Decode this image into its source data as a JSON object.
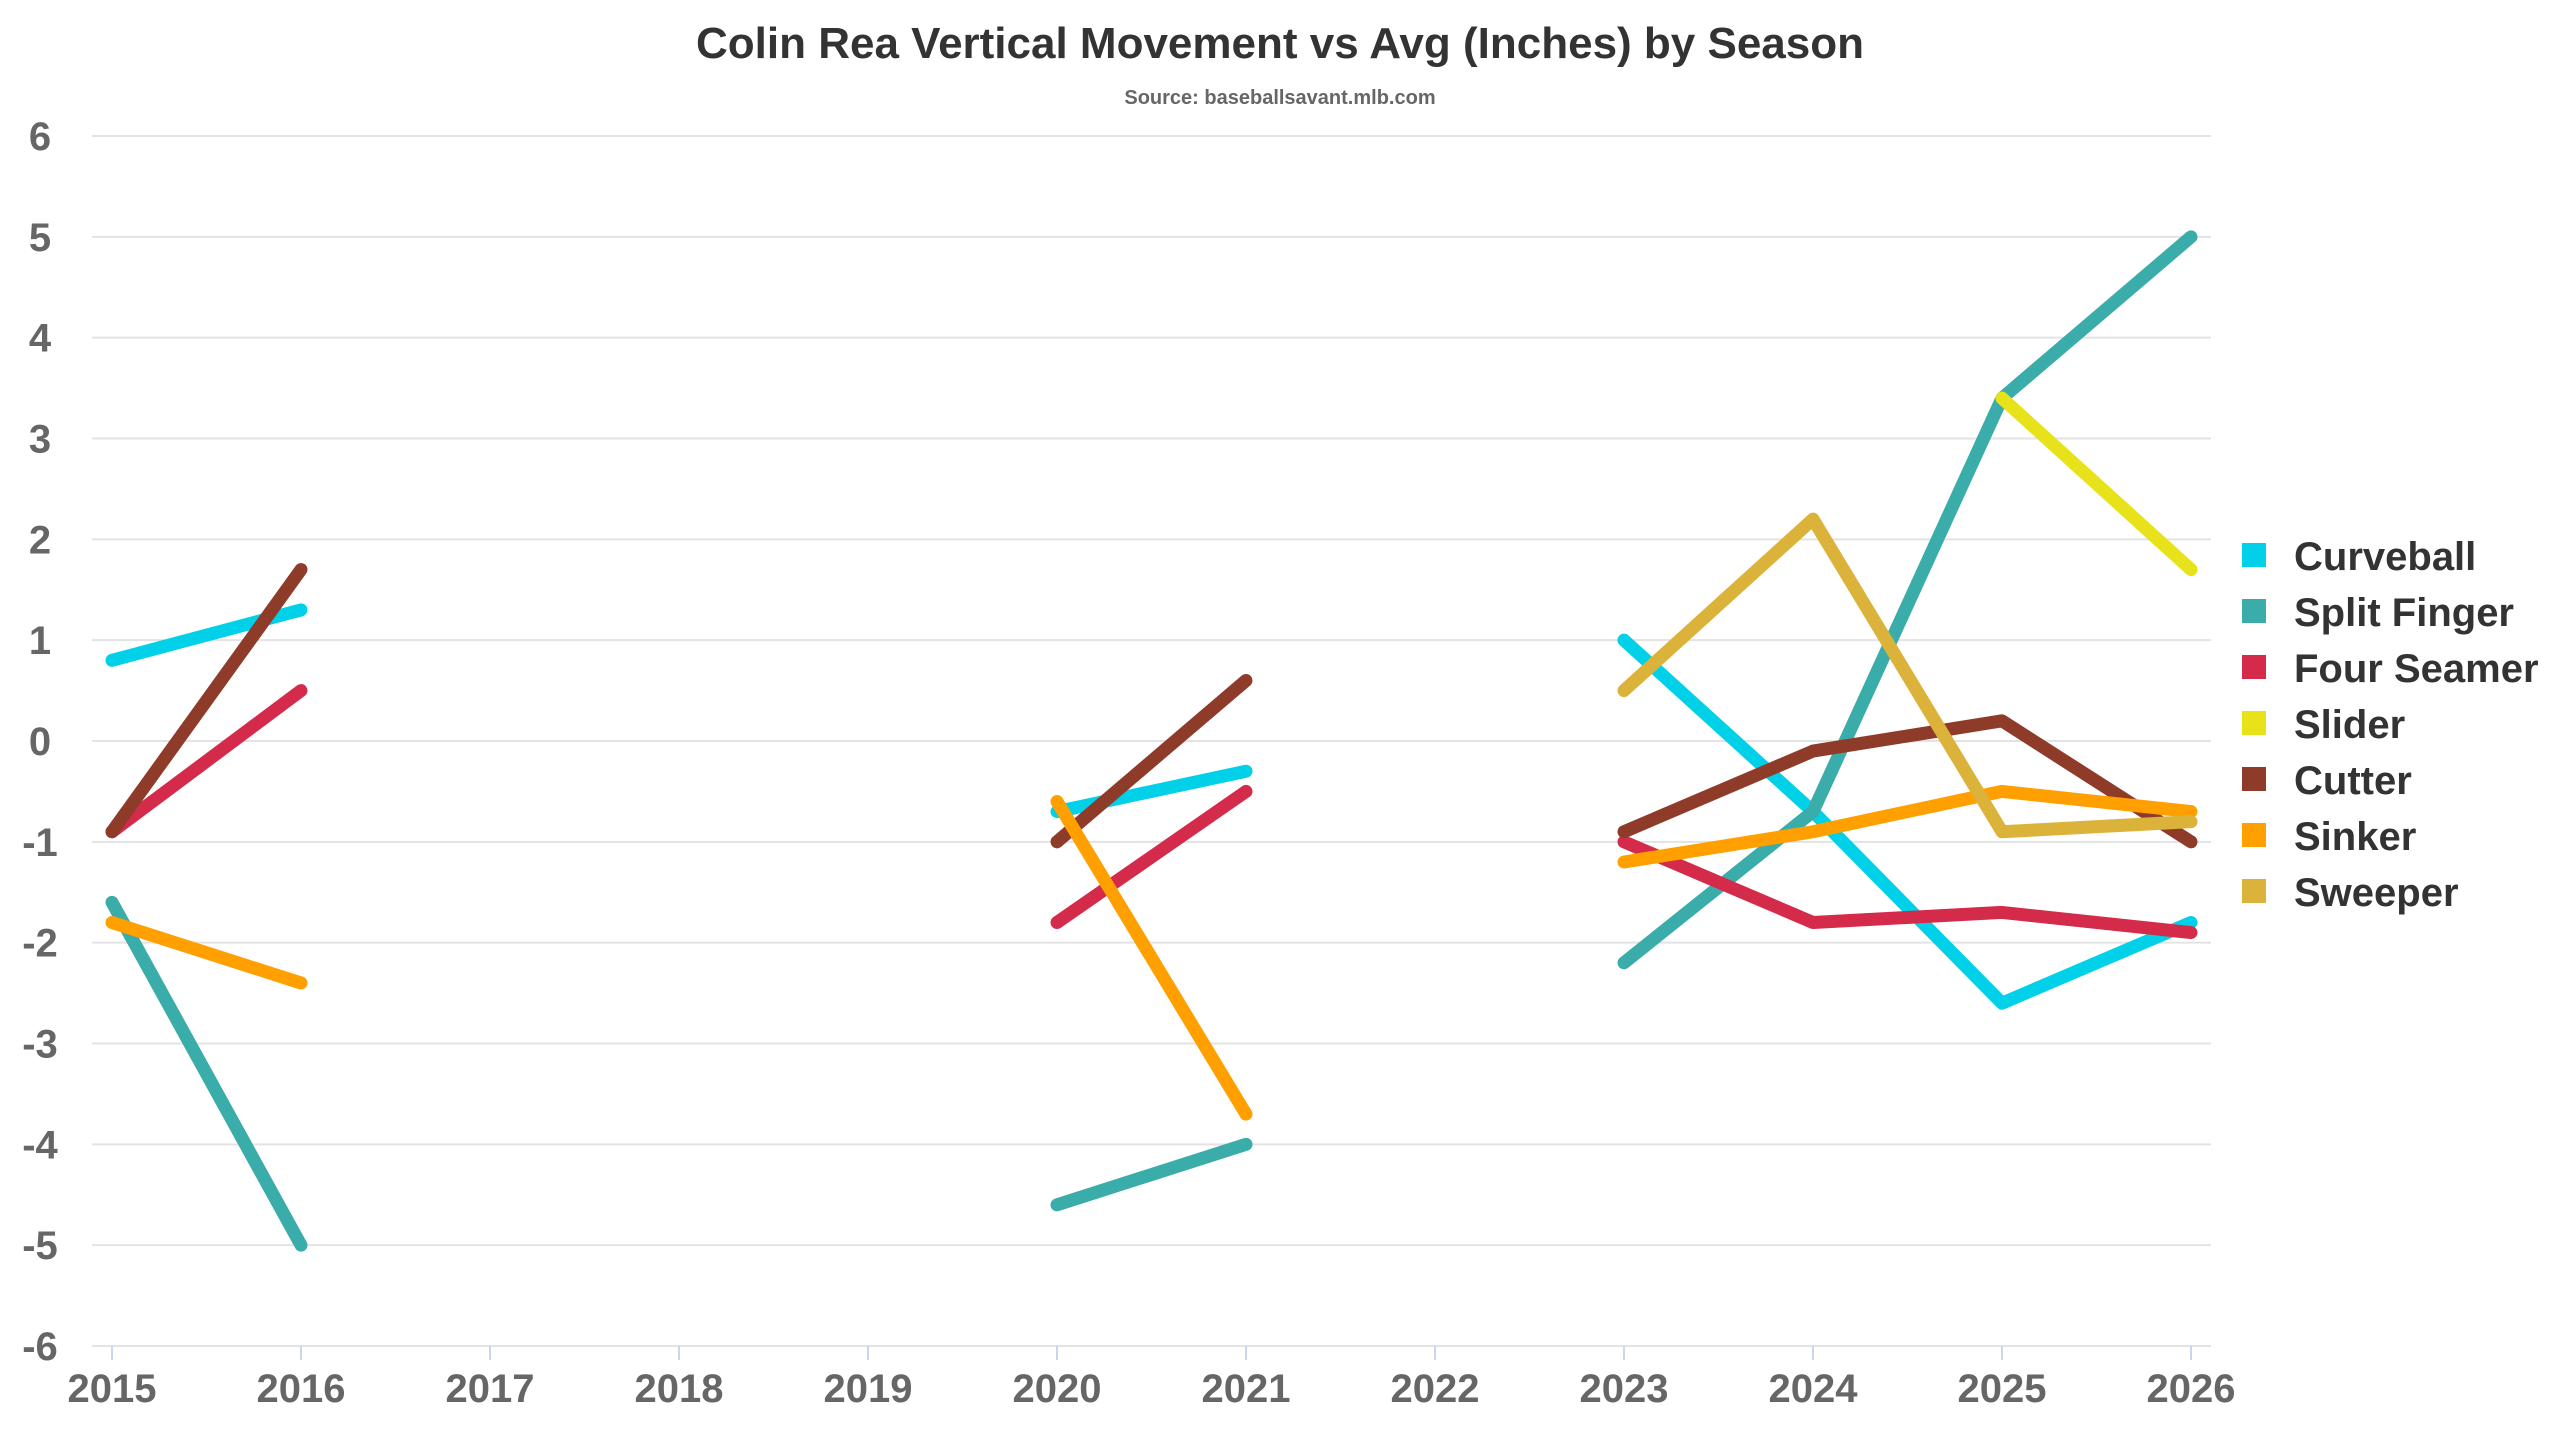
{
  "chart_data": {
    "type": "line",
    "title": "Colin Rea Vertical Movement vs Avg (Inches) by Season",
    "subtitle": "Source: baseballsavant.mlb.com",
    "xlabel": "",
    "ylabel": "",
    "x": [
      "2015",
      "2016",
      "2017",
      "2018",
      "2019",
      "2020",
      "2021",
      "2022",
      "2023",
      "2024",
      "2025",
      "2026"
    ],
    "ylim": [
      -6,
      6
    ],
    "yticks": [
      "6",
      "5",
      "4",
      "3",
      "2",
      "1",
      "0",
      "-1",
      "-2",
      "-3",
      "-4",
      "-5",
      "-6"
    ],
    "grid": true,
    "legend_position": "right",
    "series": [
      {
        "name": "Curveball",
        "color": "#00d1e8",
        "values": [
          0.8,
          1.3,
          null,
          null,
          null,
          -0.7,
          -0.3,
          null,
          1.0,
          -0.7,
          -2.6,
          -1.8
        ]
      },
      {
        "name": "Split Finger",
        "color": "#3aaca9",
        "values": [
          -1.6,
          -5.0,
          null,
          null,
          null,
          -4.6,
          -4.0,
          null,
          -2.2,
          -0.7,
          3.4,
          5.0
        ]
      },
      {
        "name": "Four Seamer",
        "color": "#d42b4a",
        "values": [
          -0.9,
          0.5,
          null,
          null,
          null,
          -1.8,
          -0.5,
          null,
          -1.0,
          -1.8,
          -1.7,
          -1.9
        ]
      },
      {
        "name": "Slider",
        "color": "#e8e21a",
        "values": [
          null,
          null,
          null,
          null,
          null,
          null,
          null,
          null,
          null,
          null,
          3.4,
          1.7
        ]
      },
      {
        "name": "Cutter",
        "color": "#8e3b2a",
        "values": [
          -0.9,
          1.7,
          null,
          null,
          null,
          -1.0,
          0.6,
          null,
          -0.9,
          -0.1,
          0.2,
          -1.0
        ]
      },
      {
        "name": "Sinker",
        "color": "#ff9f00",
        "values": [
          -1.8,
          -2.4,
          null,
          null,
          null,
          -0.6,
          -3.7,
          null,
          -1.2,
          -0.9,
          -0.5,
          -0.7
        ]
      },
      {
        "name": "Sweeper",
        "color": "#dcb33a",
        "values": [
          null,
          null,
          null,
          null,
          null,
          null,
          null,
          null,
          0.5,
          2.2,
          -0.9,
          -0.8
        ]
      }
    ]
  }
}
